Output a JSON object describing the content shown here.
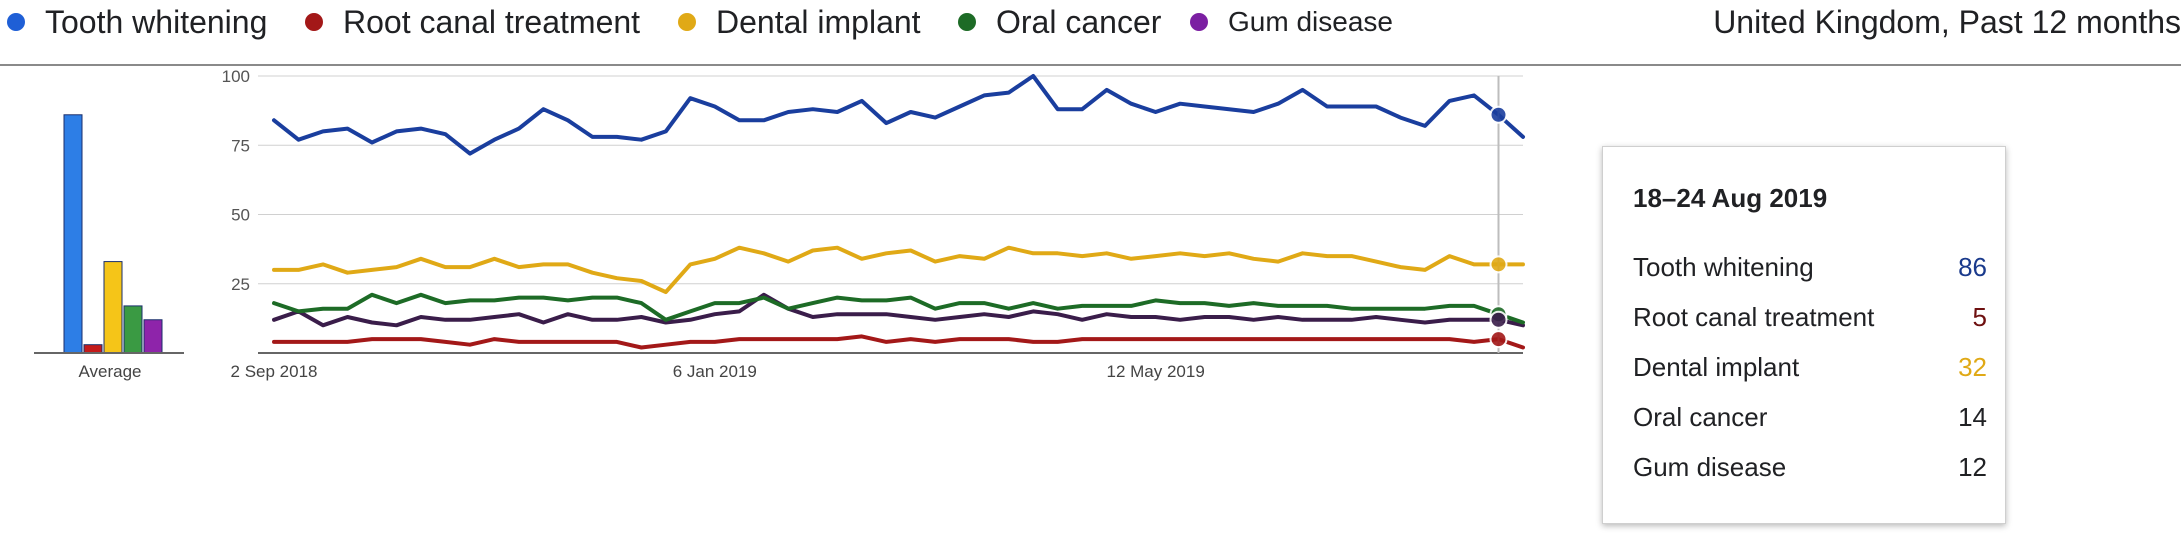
{
  "region_label": "United Kingdom, Past 12 months",
  "legend": [
    {
      "label": "Tooth whitening",
      "color": "#1f5fd6"
    },
    {
      "label": "Root canal treatment",
      "color": "#a31818"
    },
    {
      "label": "Dental implant",
      "color": "#e0a916"
    },
    {
      "label": "Oral cancer",
      "color": "#1d6b26"
    },
    {
      "label": "Gum disease",
      "color": "#7b1fa2"
    }
  ],
  "tooltip": {
    "date": "18–24 Aug 2019",
    "rows": [
      {
        "name": "Tooth whitening",
        "value": "86",
        "color": "#1a3a8c"
      },
      {
        "name": "Root canal treatment",
        "value": "5",
        "color": "#6e1010"
      },
      {
        "name": "Dental implant",
        "value": "32",
        "color": "#e0a916"
      },
      {
        "name": "Oral cancer",
        "value": "14",
        "color": "#202124"
      },
      {
        "name": "Gum disease",
        "value": "12",
        "color": "#202124"
      }
    ]
  },
  "chart_data": [
    {
      "type": "bar",
      "xlabel": "Average",
      "categories": [
        "Tooth whitening",
        "Root canal treatment",
        "Dental implant",
        "Oral cancer",
        "Gum disease"
      ],
      "values": [
        86,
        3,
        33,
        17,
        12
      ],
      "colors": [
        "#2d7ee6",
        "#c41a1a",
        "#f5c518",
        "#3a9a43",
        "#8e24aa"
      ],
      "ylim": [
        0,
        100
      ]
    },
    {
      "type": "line",
      "ylim": [
        0,
        100
      ],
      "yticks": [
        25,
        50,
        75,
        100
      ],
      "grid": true,
      "xtick_labels": [
        "2 Sep 2018",
        "6 Jan 2019",
        "12 May 2019"
      ],
      "xtick_index": [
        0,
        18,
        36
      ],
      "x": [
        "2 Sep 2018",
        "9 Sep 2018",
        "16 Sep 2018",
        "23 Sep 2018",
        "30 Sep 2018",
        "7 Oct 2018",
        "14 Oct 2018",
        "21 Oct 2018",
        "28 Oct 2018",
        "4 Nov 2018",
        "11 Nov 2018",
        "18 Nov 2018",
        "25 Nov 2018",
        "2 Dec 2018",
        "9 Dec 2018",
        "16 Dec 2018",
        "23 Dec 2018",
        "30 Dec 2018",
        "6 Jan 2019",
        "13 Jan 2019",
        "20 Jan 2019",
        "27 Jan 2019",
        "3 Feb 2019",
        "10 Feb 2019",
        "17 Feb 2019",
        "24 Feb 2019",
        "3 Mar 2019",
        "10 Mar 2019",
        "17 Mar 2019",
        "24 Mar 2019",
        "31 Mar 2019",
        "7 Apr 2019",
        "14 Apr 2019",
        "21 Apr 2019",
        "28 Apr 2019",
        "5 May 2019",
        "12 May 2019",
        "19 May 2019",
        "26 May 2019",
        "2 Jun 2019",
        "9 Jun 2019",
        "16 Jun 2019",
        "23 Jun 2019",
        "30 Jun 2019",
        "7 Jul 2019",
        "14 Jul 2019",
        "21 Jul 2019",
        "28 Jul 2019",
        "4 Aug 2019",
        "11 Aug 2019",
        "18 Aug 2019",
        "25 Aug 2019"
      ],
      "highlight_index": 50,
      "series": [
        {
          "name": "Tooth whitening",
          "color": "#1a3e9e",
          "fade": "#b9d3f2",
          "values": [
            84,
            77,
            80,
            81,
            76,
            80,
            81,
            79,
            72,
            77,
            81,
            88,
            84,
            78,
            78,
            77,
            80,
            92,
            89,
            84,
            84,
            87,
            88,
            87,
            91,
            83,
            87,
            85,
            89,
            93,
            94,
            100,
            88,
            88,
            95,
            90,
            87,
            90,
            89,
            88,
            87,
            90,
            95,
            89,
            89,
            89,
            85,
            82,
            91,
            93,
            86,
            78
          ]
        },
        {
          "name": "Root canal treatment",
          "color": "#a31818",
          "fade": "#f2b8b8",
          "values": [
            4,
            4,
            4,
            4,
            5,
            5,
            5,
            4,
            3,
            5,
            4,
            4,
            4,
            4,
            4,
            2,
            3,
            4,
            4,
            5,
            5,
            5,
            5,
            5,
            6,
            4,
            5,
            4,
            5,
            5,
            5,
            4,
            4,
            5,
            5,
            5,
            5,
            5,
            5,
            5,
            5,
            5,
            5,
            5,
            5,
            5,
            5,
            5,
            5,
            4,
            5,
            2
          ]
        },
        {
          "name": "Dental implant",
          "color": "#e0a916",
          "fade": "#f5e3a8",
          "values": [
            30,
            30,
            32,
            29,
            30,
            31,
            34,
            31,
            31,
            34,
            31,
            32,
            32,
            29,
            27,
            26,
            22,
            32,
            34,
            38,
            36,
            33,
            37,
            38,
            34,
            36,
            37,
            33,
            35,
            34,
            38,
            36,
            36,
            35,
            36,
            34,
            35,
            36,
            35,
            36,
            34,
            33,
            36,
            35,
            35,
            33,
            31,
            30,
            35,
            32,
            32,
            32
          ]
        },
        {
          "name": "Oral cancer",
          "color": "#1d6b26",
          "fade": "#b9dcbd",
          "values": [
            18,
            15,
            16,
            16,
            21,
            18,
            21,
            18,
            19,
            19,
            20,
            20,
            19,
            20,
            20,
            18,
            12,
            15,
            18,
            18,
            20,
            16,
            18,
            20,
            19,
            19,
            20,
            16,
            18,
            18,
            16,
            18,
            16,
            17,
            17,
            17,
            19,
            18,
            18,
            17,
            18,
            17,
            17,
            17,
            16,
            16,
            16,
            16,
            17,
            17,
            14,
            11
          ]
        },
        {
          "name": "Gum disease",
          "color": "#3a1d4a",
          "fade": "#d6bde4",
          "values": [
            12,
            15,
            10,
            13,
            11,
            10,
            13,
            12,
            12,
            13,
            14,
            11,
            14,
            12,
            12,
            13,
            11,
            12,
            14,
            15,
            21,
            16,
            13,
            14,
            14,
            14,
            13,
            12,
            13,
            14,
            13,
            15,
            14,
            12,
            14,
            13,
            13,
            12,
            13,
            13,
            12,
            13,
            12,
            12,
            12,
            13,
            12,
            11,
            12,
            12,
            12,
            10
          ]
        }
      ]
    }
  ]
}
